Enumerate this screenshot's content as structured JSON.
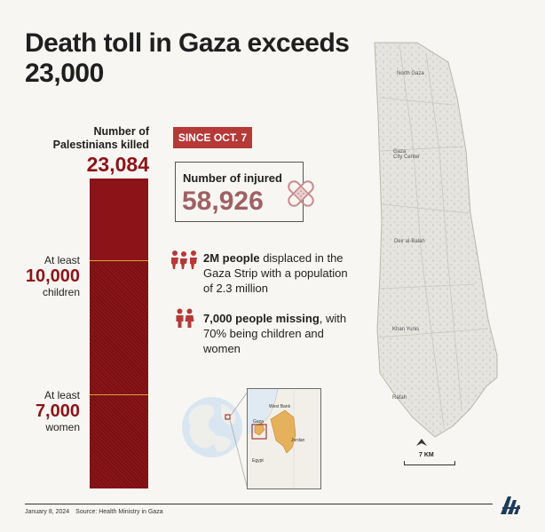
{
  "title": {
    "line1": "Death toll in Gaza exceeds",
    "line2": "23,000"
  },
  "killed": {
    "label_line1": "Number of",
    "label_line2": "Palestinians killed",
    "total": "23,084",
    "total_value": 23084
  },
  "children": {
    "prefix": "At least",
    "number": "10,000",
    "suffix": "children",
    "value": 10000
  },
  "women": {
    "prefix": "At least",
    "number": "7,000",
    "suffix": "women",
    "value": 7000
  },
  "since_badge": "SINCE OCT. 7",
  "injured": {
    "label": "Number of injured",
    "number": "58,926"
  },
  "displaced": {
    "bold": "2M people",
    "rest": " displaced in the Gaza Strip with a population of 2.3 million"
  },
  "missing": {
    "bold": "7,000 people missing",
    "rest": ", with 70% being children and women"
  },
  "inset_labels": {
    "west_bank": "West Bank",
    "gaza": "Gaza",
    "jordan": "Jordan",
    "egypt": "Egypt"
  },
  "map_labels": {
    "north_gaza": "North Gaza",
    "gaza_city_line1": "Gaza",
    "gaza_city_line2": "City Center",
    "deir_al_balah": "Deir al-Balah",
    "khan_yunis": "Khan Yunis",
    "rafah": "Rafah"
  },
  "scale_label": "7 KM",
  "footer": {
    "date": "January 8, 2024",
    "source": "Source: Health Ministry in Gaza"
  },
  "colors": {
    "dark_red": "#8c1418",
    "badge_red": "#b53a37",
    "injured_pink": "#9f6064",
    "gold": "#d8a43a"
  }
}
